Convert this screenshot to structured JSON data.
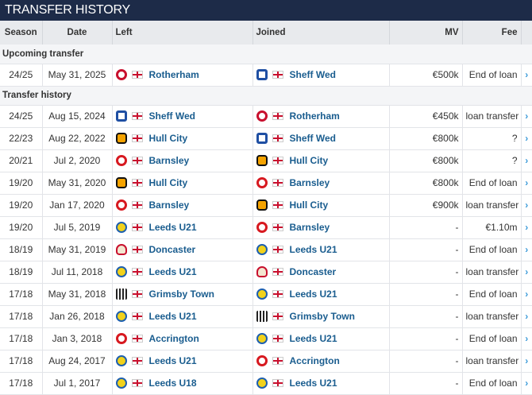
{
  "title": "TRANSFER HISTORY",
  "columns": [
    "Season",
    "Date",
    "Left",
    "Joined",
    "MV",
    "Fee"
  ],
  "upcoming_label": "Upcoming transfer",
  "history_label": "Transfer history",
  "arrow_icon": "chevron-right-icon",
  "upcoming": [
    {
      "season": "24/25",
      "date": "May 31, 2025",
      "left": "Rotherham",
      "left_crest": "rotherham",
      "joined": "Sheff Wed",
      "joined_crest": "sheffwed",
      "mv": "€500k",
      "fee": "End of loan"
    }
  ],
  "history": [
    {
      "season": "24/25",
      "date": "Aug 15, 2024",
      "left": "Sheff Wed",
      "left_crest": "sheffwed",
      "joined": "Rotherham",
      "joined_crest": "rotherham",
      "mv": "€450k",
      "fee": "loan transfer"
    },
    {
      "season": "22/23",
      "date": "Aug 22, 2022",
      "left": "Hull City",
      "left_crest": "hull",
      "joined": "Sheff Wed",
      "joined_crest": "sheffwed",
      "mv": "€800k",
      "fee": "?"
    },
    {
      "season": "20/21",
      "date": "Jul 2, 2020",
      "left": "Barnsley",
      "left_crest": "barnsley",
      "joined": "Hull City",
      "joined_crest": "hull",
      "mv": "€800k",
      "fee": "?"
    },
    {
      "season": "19/20",
      "date": "May 31, 2020",
      "left": "Hull City",
      "left_crest": "hull",
      "joined": "Barnsley",
      "joined_crest": "barnsley",
      "mv": "€800k",
      "fee": "End of loan"
    },
    {
      "season": "19/20",
      "date": "Jan 17, 2020",
      "left": "Barnsley",
      "left_crest": "barnsley",
      "joined": "Hull City",
      "joined_crest": "hull",
      "mv": "€900k",
      "fee": "loan transfer"
    },
    {
      "season": "19/20",
      "date": "Jul 5, 2019",
      "left": "Leeds U21",
      "left_crest": "leeds",
      "joined": "Barnsley",
      "joined_crest": "barnsley",
      "mv": "-",
      "fee": "€1.10m"
    },
    {
      "season": "18/19",
      "date": "May 31, 2019",
      "left": "Doncaster",
      "left_crest": "doncaster",
      "joined": "Leeds U21",
      "joined_crest": "leeds",
      "mv": "-",
      "fee": "End of loan"
    },
    {
      "season": "18/19",
      "date": "Jul 11, 2018",
      "left": "Leeds U21",
      "left_crest": "leeds",
      "joined": "Doncaster",
      "joined_crest": "doncaster",
      "mv": "-",
      "fee": "loan transfer"
    },
    {
      "season": "17/18",
      "date": "May 31, 2018",
      "left": "Grimsby Town",
      "left_crest": "grimsby",
      "joined": "Leeds U21",
      "joined_crest": "leeds",
      "mv": "-",
      "fee": "End of loan"
    },
    {
      "season": "17/18",
      "date": "Jan 26, 2018",
      "left": "Leeds U21",
      "left_crest": "leeds",
      "joined": "Grimsby Town",
      "joined_crest": "grimsby",
      "mv": "-",
      "fee": "loan transfer"
    },
    {
      "season": "17/18",
      "date": "Jan 3, 2018",
      "left": "Accrington",
      "left_crest": "accrington",
      "joined": "Leeds U21",
      "joined_crest": "leeds",
      "mv": "-",
      "fee": "End of loan"
    },
    {
      "season": "17/18",
      "date": "Aug 24, 2017",
      "left": "Leeds U21",
      "left_crest": "leeds",
      "joined": "Accrington",
      "joined_crest": "accrington",
      "mv": "-",
      "fee": "loan transfer"
    },
    {
      "season": "17/18",
      "date": "Jul 1, 2017",
      "left": "Leeds U18",
      "left_crest": "leeds",
      "joined": "Leeds U21",
      "joined_crest": "leeds",
      "mv": "-",
      "fee": "End of loan"
    }
  ],
  "crest_colors": {
    "rotherham": "#c8102e",
    "sheffwed": "#1f4fa3",
    "hull": "#f5a300",
    "barnsley": "#d71920",
    "leeds": "#f2d21b",
    "doncaster": "#c8102e",
    "grimsby": "#222222",
    "accrington": "#d71920"
  }
}
